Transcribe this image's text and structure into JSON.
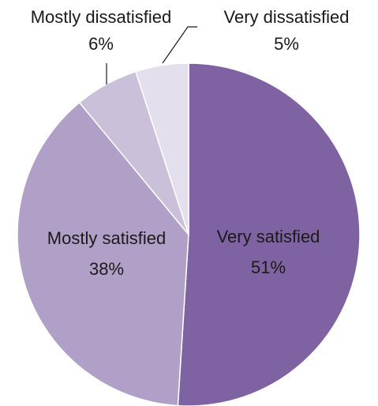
{
  "chart_data": {
    "type": "pie",
    "title": "",
    "slices": [
      {
        "label": "Very satisfied",
        "value": 51,
        "value_label": "51%",
        "color": "#7f62a1"
      },
      {
        "label": "Mostly satisfied",
        "value": 38,
        "value_label": "38%",
        "color": "#b0a0c7"
      },
      {
        "label": "Mostly dissatisfied",
        "value": 6,
        "value_label": "6%",
        "color": "#cbc0da"
      },
      {
        "label": "Very dissatisfied",
        "value": 5,
        "value_label": "5%",
        "color": "#e4dfec"
      }
    ],
    "start_angle": "12 o'clock",
    "direction": "clockwise",
    "legend": "none",
    "label_position": "slice labels inside large slices, outside with leader lines for small slices"
  }
}
